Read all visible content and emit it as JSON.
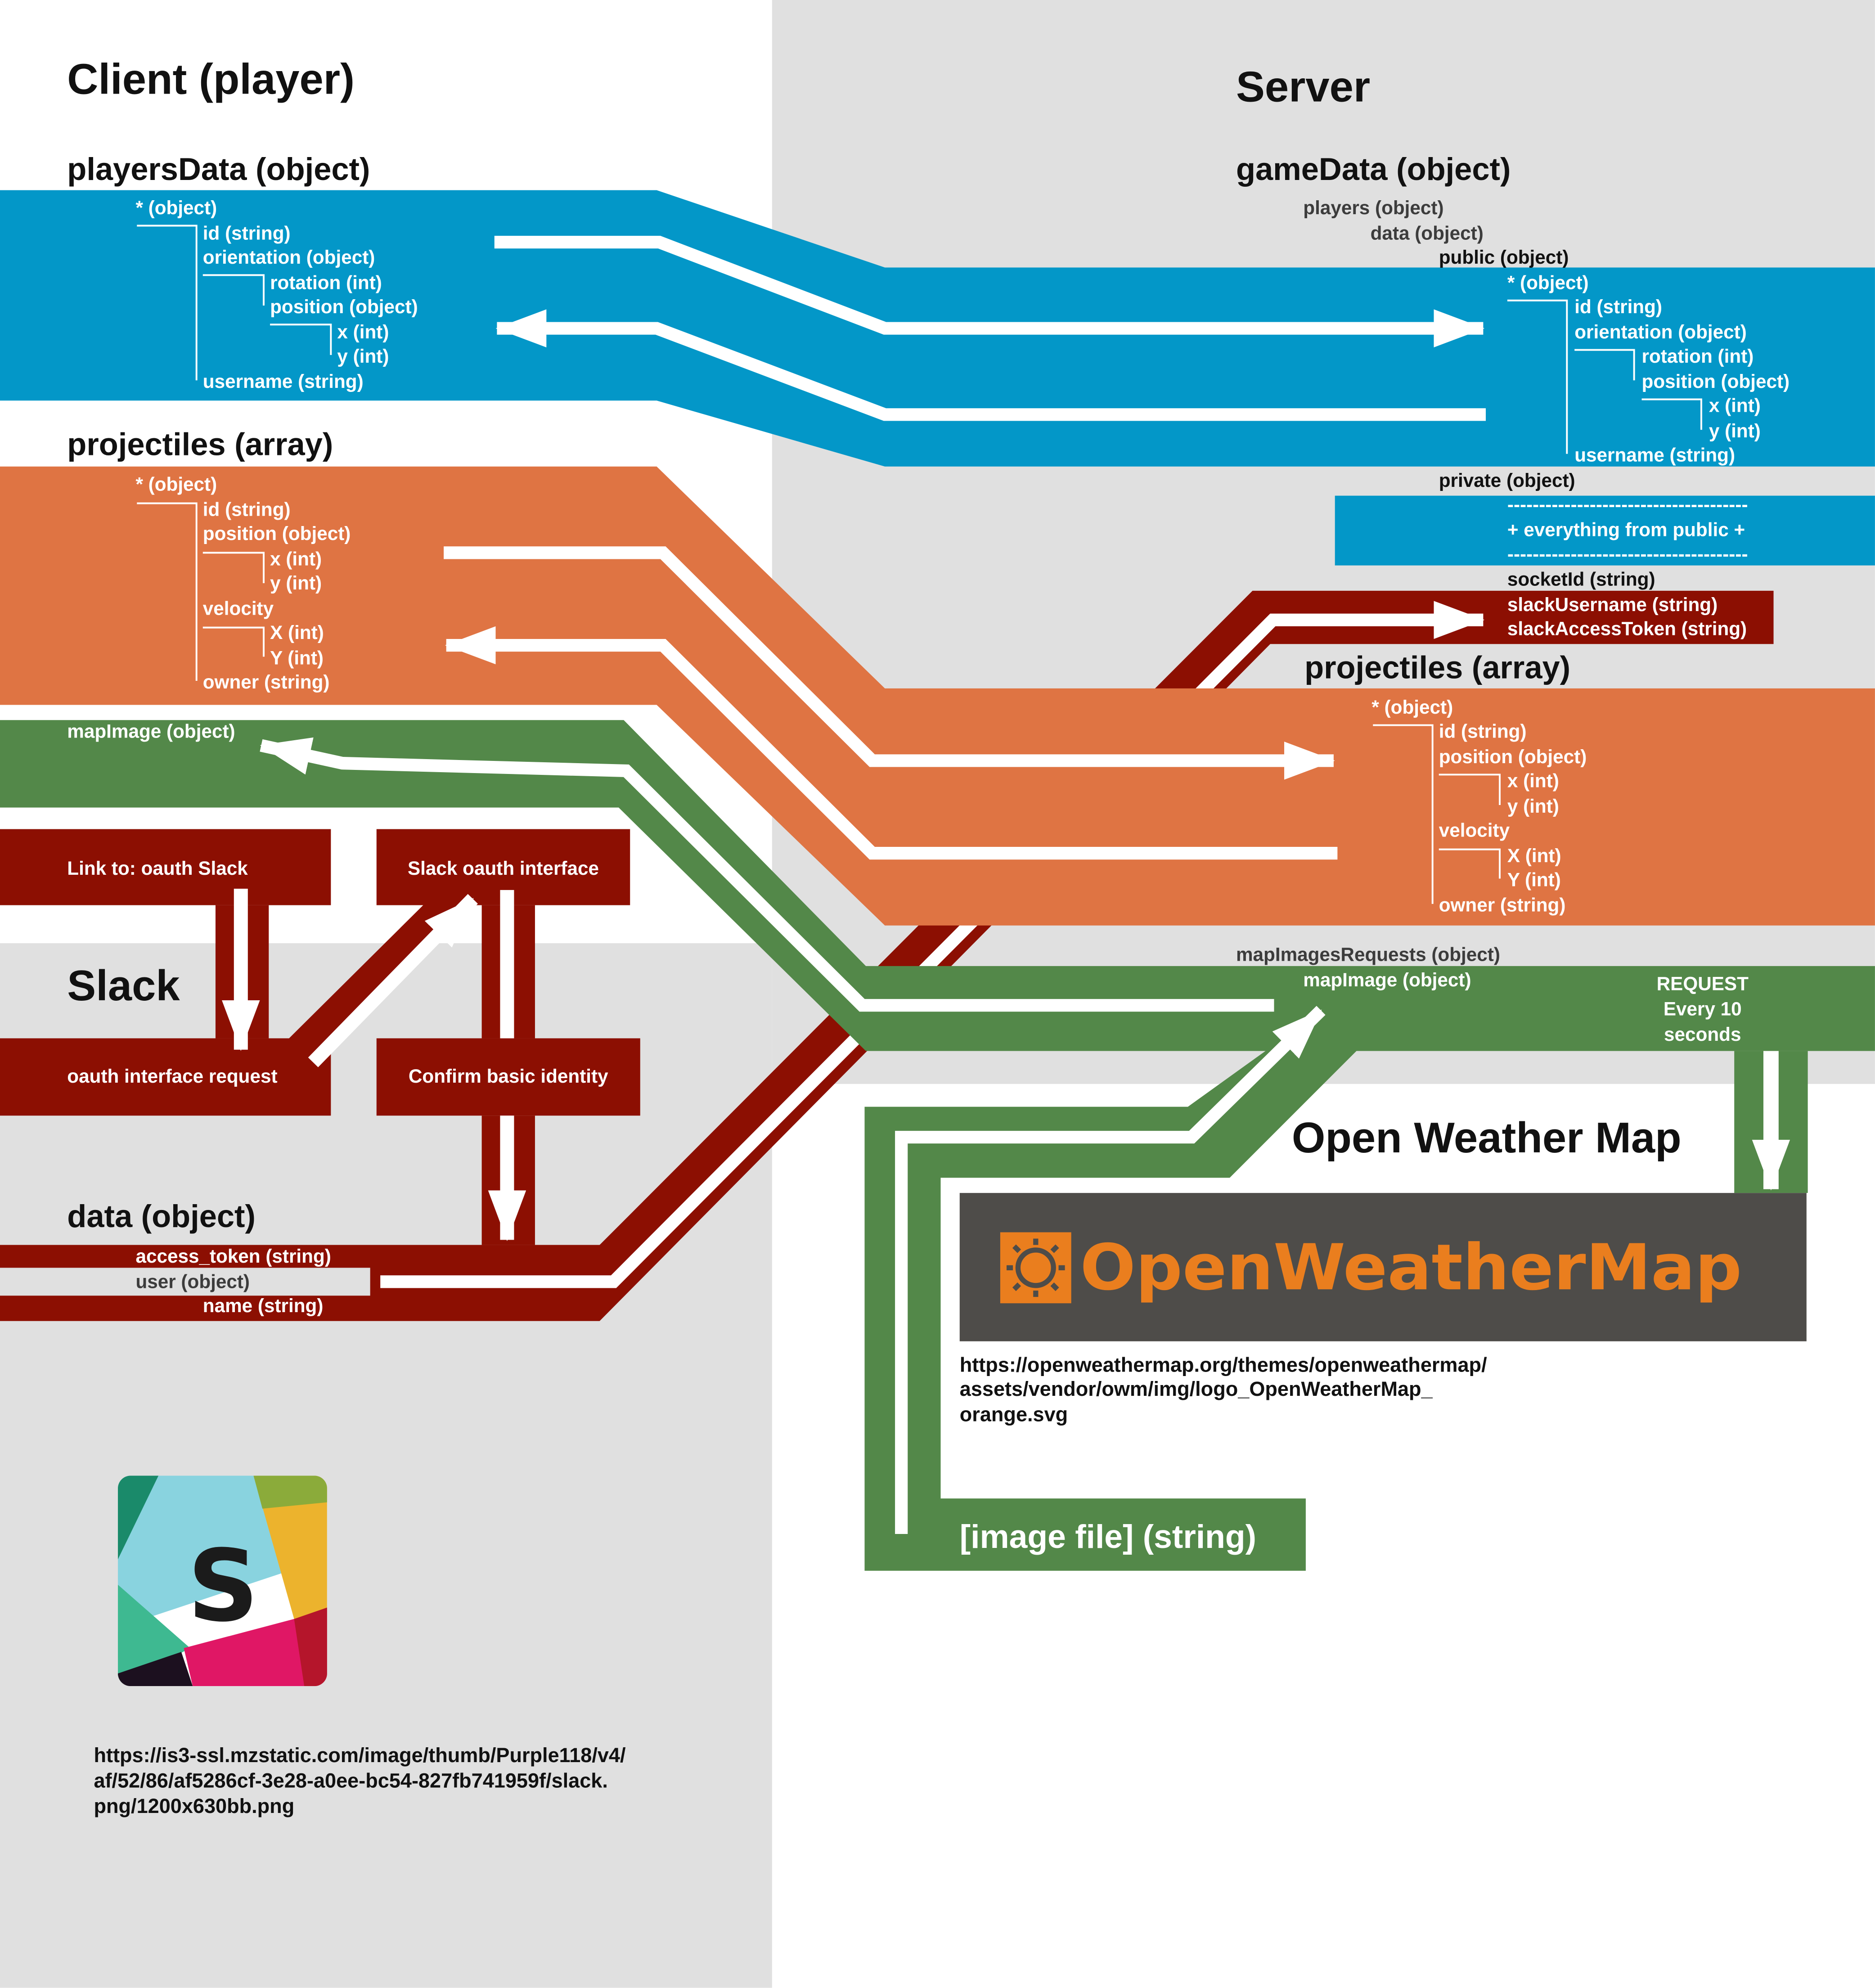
{
  "colors": {
    "blue": "#0397c8",
    "orange": "#df7443",
    "green": "#538849",
    "red": "#8c0f02",
    "grey": "#e0e0e0",
    "owm_bg": "#4e4c49",
    "owm_orange": "#ea7e1e",
    "text_dark": "#111111",
    "text_light": "#ffffff",
    "text_muted": "#3c3c3c"
  },
  "sections": {
    "client": "Client (player)",
    "server": "Server",
    "slack": "Slack",
    "owm": "Open Weather Map"
  },
  "client": {
    "playersData": {
      "title": "playersData (object)",
      "lines": [
        "* (object)",
        "id (string)",
        "orientation (object)",
        "rotation (int)",
        "position (object)",
        "x (int)",
        "y (int)",
        "username (string)"
      ]
    },
    "projectiles": {
      "title": "projectiles (array)",
      "lines": [
        "* (object)",
        "id (string)",
        "position (object)",
        "x (int)",
        "y (int)",
        "velocity",
        "X (int)",
        "Y (int)",
        "owner (string)"
      ]
    },
    "mapImage": "mapImage (object)"
  },
  "server": {
    "gameData": {
      "title": "gameData (object)",
      "lines": [
        "players (object)",
        "data (object)",
        "public (object)",
        "* (object)",
        "id (string)",
        "orientation (object)",
        "rotation (int)",
        "position (object)",
        "x (int)",
        "y (int)",
        "username (string)",
        "private (object)",
        "--------------------------------------",
        "+ everything from public +",
        "--------------------------------------",
        "socketId (string)",
        "slackUsername (string)",
        "slackAccessToken (string)"
      ]
    },
    "projectiles": {
      "title": "projectiles (array)",
      "lines": [
        "* (object)",
        "id (string)",
        "position (object)",
        "x (int)",
        "y (int)",
        "velocity",
        "X (int)",
        "Y (int)",
        "owner (string)"
      ]
    },
    "mapImagesRequests": "mapImagesRequests (object)",
    "mapImage": "mapImage (object)",
    "request": [
      "REQUEST",
      "Every 10",
      "seconds"
    ]
  },
  "slack": {
    "link_label": "Link to: oauth Slack",
    "interface_label": "Slack oauth interface",
    "request_label": "oauth interface request",
    "confirm_label": "Confirm basic identity",
    "data_title": "data (object)",
    "data_lines": [
      "access_token (string)",
      "user (object)",
      "name (string)"
    ],
    "logo_letter": "S",
    "logo_url": [
      "https://is3-ssl.mzstatic.com/image/thumb/Purple118/v4/",
      "af/52/86/af5286cf-3e28-a0ee-bc54-827fb741959f/slack.",
      "png/1200x630bb.png"
    ]
  },
  "owm": {
    "logo_text": "OpenWeatherMap",
    "url": [
      "https://openweathermap.org/themes/openweathermap/",
      "assets/vendor/owm/img/logo_OpenWeatherMap_",
      "orange.svg"
    ],
    "image_file": "[image file] (string)"
  }
}
